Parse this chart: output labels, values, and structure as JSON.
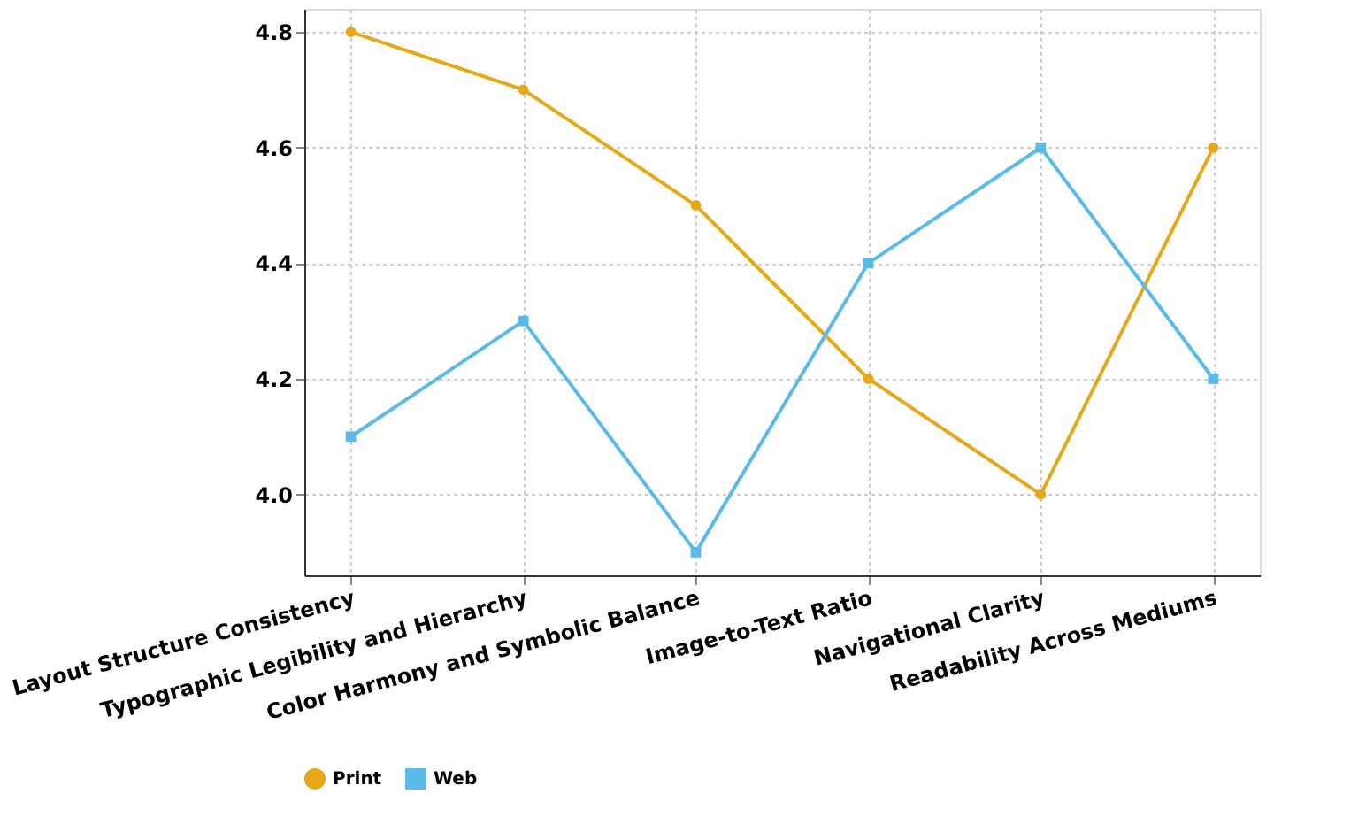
{
  "chart_data": {
    "type": "line",
    "categories": [
      "Layout Structure Consistency",
      "Typographic Legibility and Hierarchy",
      "Color Harmony and Symbolic Balance",
      "Image-to-Text Ratio",
      "Navigational Clarity",
      "Readability Across Mediums"
    ],
    "series": [
      {
        "name": "Print",
        "color": "#e6a817",
        "marker": "circle",
        "values": [
          4.8,
          4.7,
          4.5,
          4.2,
          4.0,
          4.6
        ]
      },
      {
        "name": "Web",
        "color": "#5bbbe8",
        "marker": "square",
        "values": [
          4.1,
          4.3,
          3.9,
          4.4,
          4.6,
          4.2
        ]
      }
    ],
    "ylim": [
      3.86,
      4.84
    ],
    "yticks": [
      {
        "value": 4,
        "label": "4.0"
      },
      4.2,
      4.4,
      4.6,
      4.8
    ],
    "grid": true,
    "legend": "bottom",
    "line_style": "solid"
  }
}
